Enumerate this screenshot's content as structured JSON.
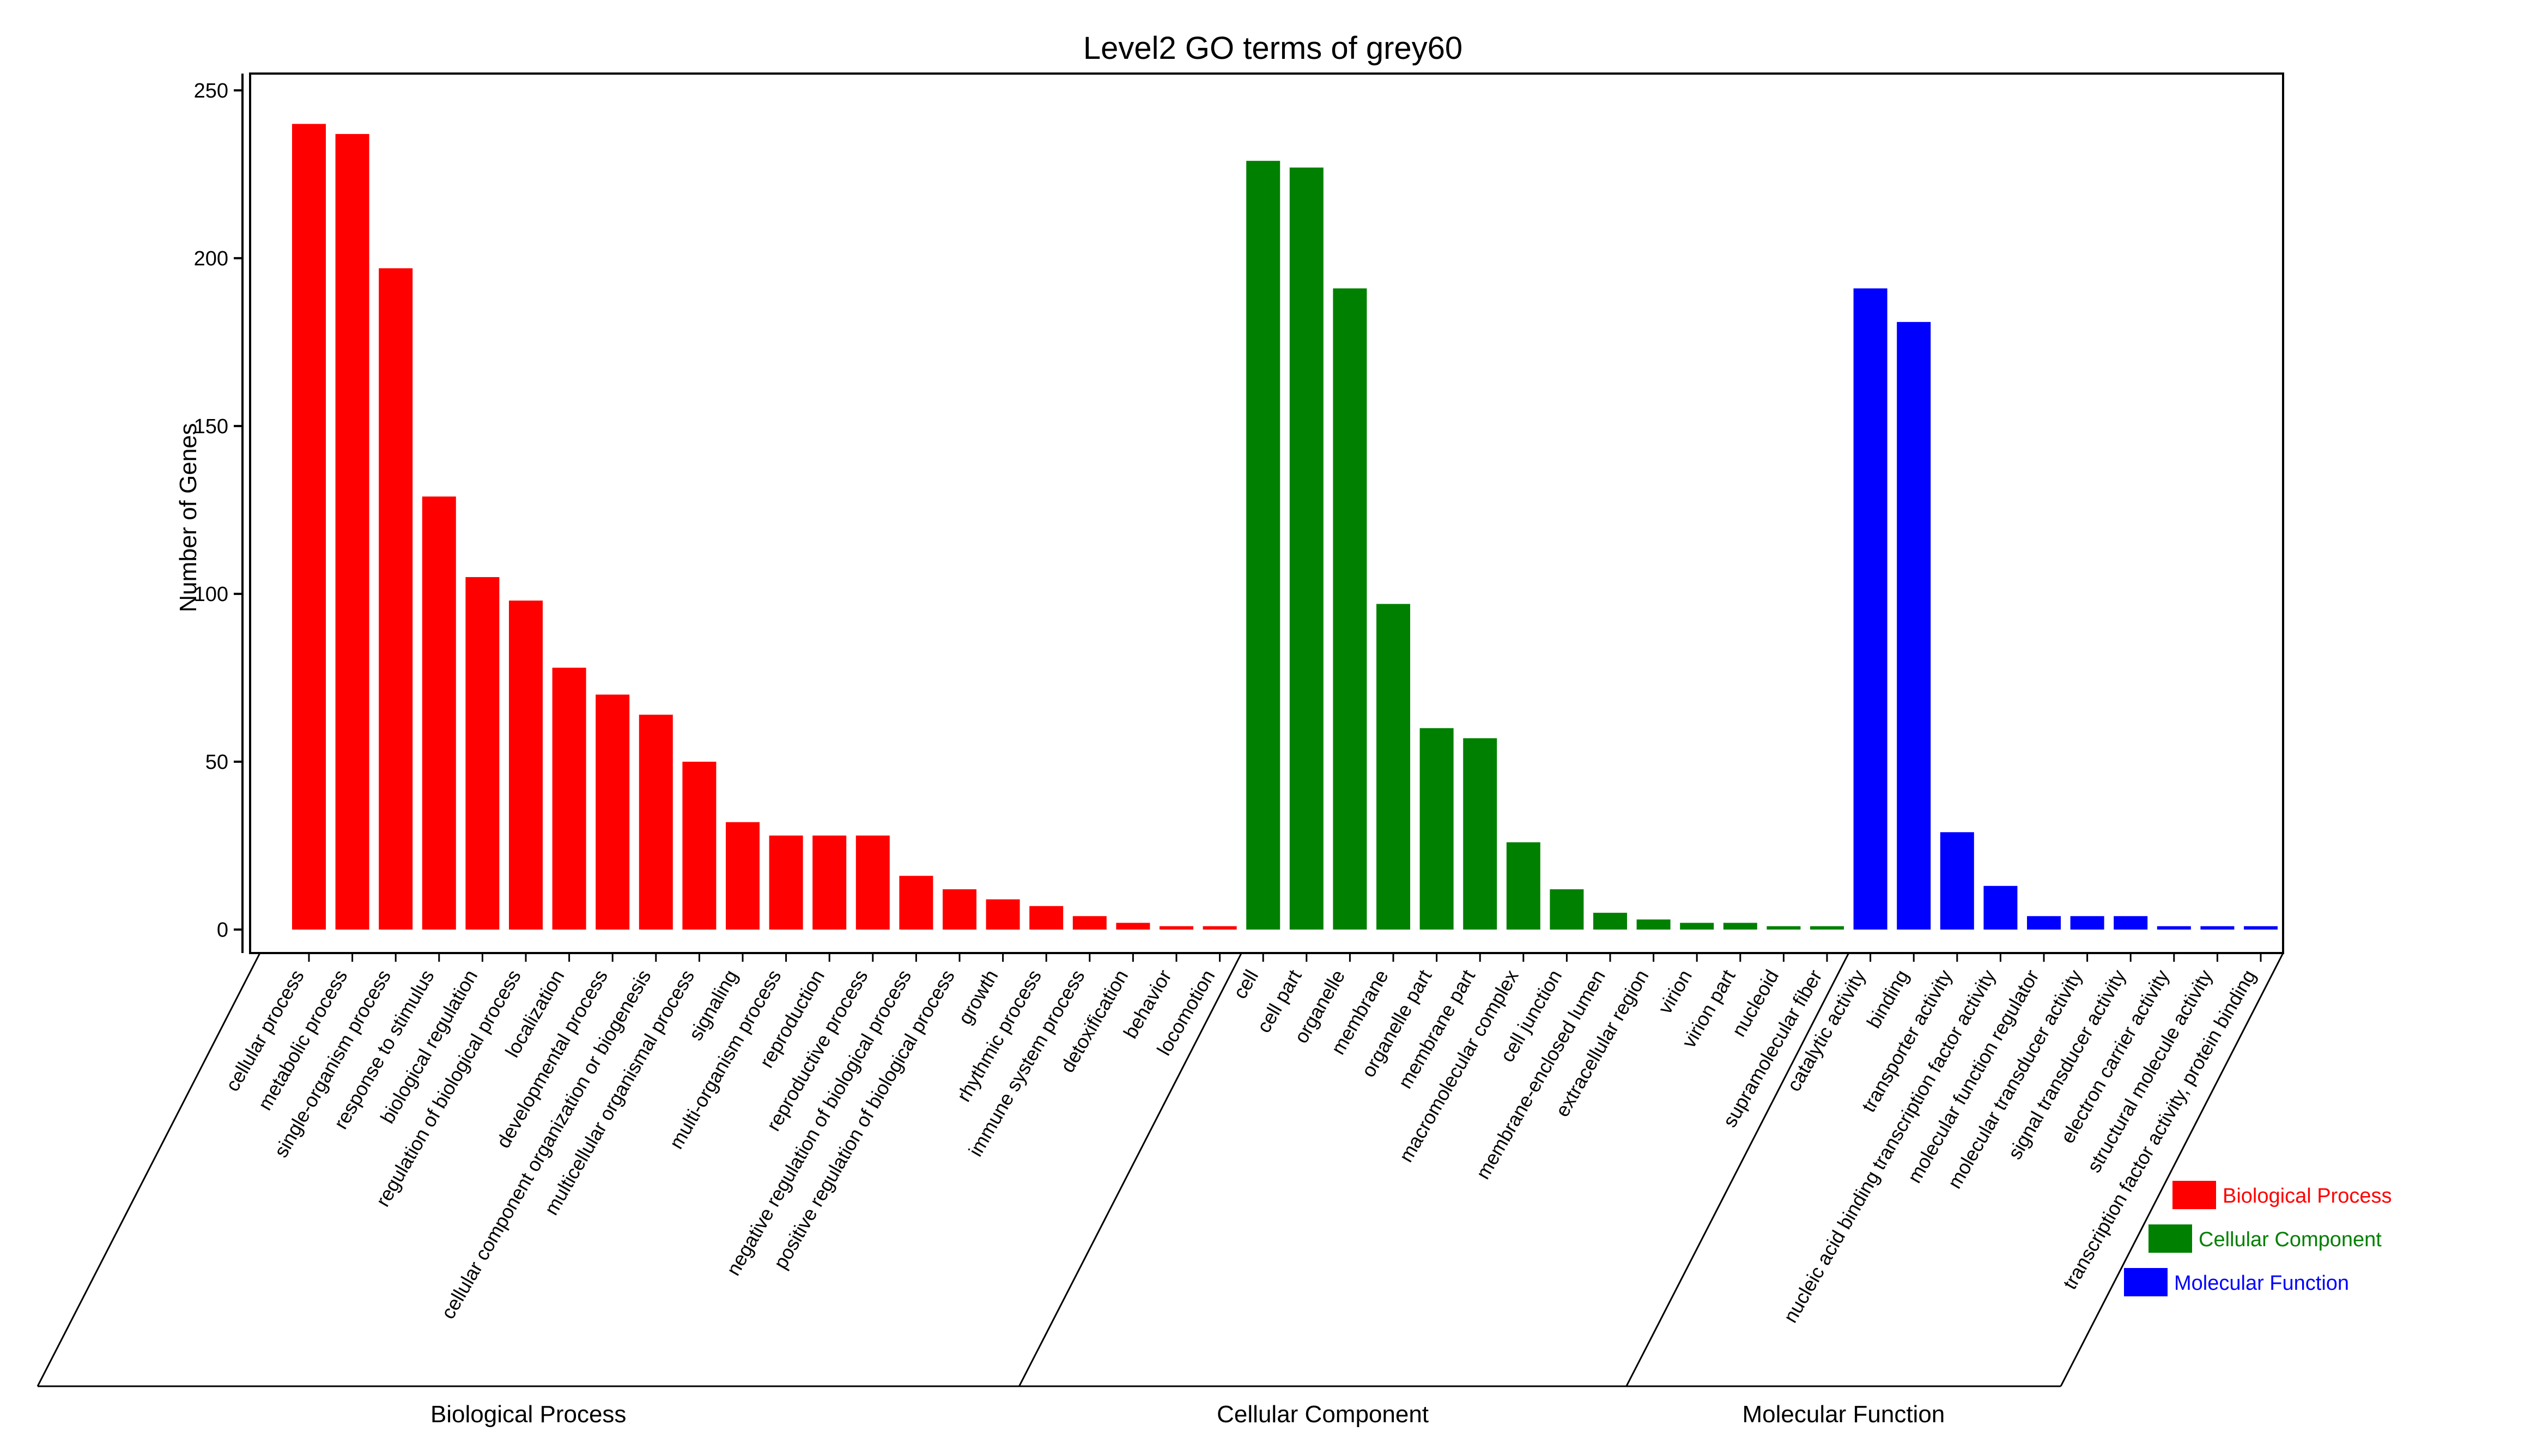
{
  "chart_data": {
    "type": "bar",
    "title": "Level2 GO terms of grey60",
    "ylabel": "Number of Genes",
    "xlabel": "",
    "ylim": [
      -7,
      255
    ],
    "yticks": [
      0,
      50,
      100,
      150,
      200,
      250
    ],
    "grid": false,
    "legend_position": "bottom-right",
    "series": [
      {
        "name": "Biological Process",
        "color": "#ff0000",
        "categories": [
          "cellular process",
          "metabolic process",
          "single-organism process",
          "response to stimulus",
          "biological regulation",
          "regulation of biological process",
          "localization",
          "developmental process",
          "cellular component organization or biogenesis",
          "multicellular organismal process",
          "signaling",
          "multi-organism process",
          "reproduction",
          "reproductive process",
          "negative regulation of biological process",
          "positive regulation of biological process",
          "growth",
          "rhythmic process",
          "immune system process",
          "detoxification",
          "behavior",
          "locomotion"
        ],
        "values": [
          240,
          237,
          197,
          129,
          105,
          98,
          78,
          70,
          64,
          50,
          32,
          28,
          28,
          28,
          16,
          12,
          9,
          7,
          4,
          2,
          1,
          1
        ]
      },
      {
        "name": "Cellular Component",
        "color": "#008000",
        "categories": [
          "cell",
          "cell part",
          "organelle",
          "membrane",
          "organelle part",
          "membrane part",
          "macromolecular complex",
          "cell junction",
          "membrane-enclosed lumen",
          "extracellular region",
          "virion",
          "virion part",
          "nucleoid",
          "supramolecular fiber"
        ],
        "values": [
          229,
          227,
          191,
          97,
          60,
          57,
          26,
          12,
          5,
          3,
          2,
          2,
          1,
          1
        ]
      },
      {
        "name": "Molecular Function",
        "color": "#0000ff",
        "categories": [
          "catalytic activity",
          "binding",
          "transporter activity",
          "nucleic acid binding transcription factor activity",
          "molecular function regulator",
          "molecular transducer activity",
          "signal transducer activity",
          "electron carrier activity",
          "structural molecule activity",
          "transcription factor activity, protein binding"
        ],
        "values": [
          191,
          181,
          29,
          13,
          4,
          4,
          4,
          1,
          1,
          1
        ]
      }
    ]
  }
}
